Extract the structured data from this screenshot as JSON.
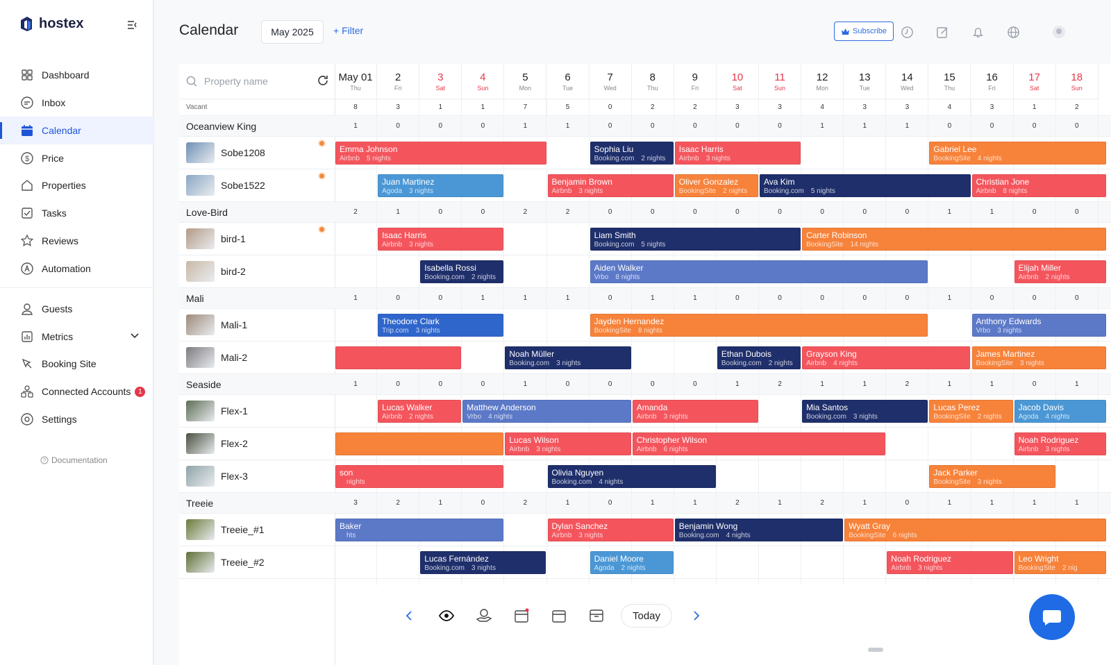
{
  "brand": {
    "name": "hostex"
  },
  "nav": {
    "items": [
      {
        "label": "Dashboard",
        "icon": "dashboard-icon"
      },
      {
        "label": "Inbox",
        "icon": "inbox-icon"
      },
      {
        "label": "Calendar",
        "icon": "calendar-icon",
        "active": true
      },
      {
        "label": "Price",
        "icon": "price-icon"
      },
      {
        "label": "Properties",
        "icon": "properties-icon"
      },
      {
        "label": "Tasks",
        "icon": "tasks-icon"
      },
      {
        "label": "Reviews",
        "icon": "reviews-icon"
      },
      {
        "label": "Automation",
        "icon": "automation-icon"
      },
      {
        "label": "Guests",
        "icon": "guests-icon"
      },
      {
        "label": "Metrics",
        "icon": "metrics-icon"
      },
      {
        "label": "Booking Site",
        "icon": "booking-site-icon"
      },
      {
        "label": "Connected Accounts",
        "icon": "connected-accounts-icon",
        "badge": "1"
      },
      {
        "label": "Settings",
        "icon": "settings-icon"
      }
    ],
    "documentation": "Documentation"
  },
  "header": {
    "title": "Calendar",
    "month": "May 2025",
    "filter": "+ Filter",
    "subscribe": "Subscribe"
  },
  "search": {
    "placeholder": "Property name"
  },
  "days": [
    {
      "num": "May 01",
      "dow": "Thu"
    },
    {
      "num": "2",
      "dow": "Fri"
    },
    {
      "num": "3",
      "dow": "Sat",
      "weekend": true
    },
    {
      "num": "4",
      "dow": "Sun",
      "weekend": true
    },
    {
      "num": "5",
      "dow": "Mon"
    },
    {
      "num": "6",
      "dow": "Tue"
    },
    {
      "num": "7",
      "dow": "Wed"
    },
    {
      "num": "8",
      "dow": "Thu"
    },
    {
      "num": "9",
      "dow": "Fri"
    },
    {
      "num": "10",
      "dow": "Sat",
      "weekend": true
    },
    {
      "num": "11",
      "dow": "Sun",
      "weekend": true
    },
    {
      "num": "12",
      "dow": "Mon"
    },
    {
      "num": "13",
      "dow": "Tue"
    },
    {
      "num": "14",
      "dow": "Wed"
    },
    {
      "num": "15",
      "dow": "Thu"
    },
    {
      "num": "16",
      "dow": "Fri"
    },
    {
      "num": "17",
      "dow": "Sat",
      "weekend": true
    },
    {
      "num": "18",
      "dow": "Sun",
      "weekend": true
    }
  ],
  "vacant": {
    "label": "Vacant",
    "values": [
      "8",
      "3",
      "1",
      "1",
      "7",
      "5",
      "0",
      "2",
      "2",
      "3",
      "3",
      "4",
      "3",
      "3",
      "4",
      "3",
      "1",
      "2"
    ]
  },
  "groups": [
    {
      "name": "Oceanview King",
      "counts": [
        "1",
        "0",
        "0",
        "0",
        "1",
        "1",
        "0",
        "0",
        "0",
        "0",
        "0",
        "1",
        "1",
        "1",
        "0",
        "0",
        "0",
        "0"
      ],
      "properties": [
        {
          "name": "Sobe1208",
          "dot": true,
          "thumb": "#6f8fb5",
          "bookings": [
            {
              "guest": "Emma Johnson",
              "channel": "Airbnb",
              "nights": "5 nights",
              "start": 0,
              "span": 5,
              "color": "red"
            },
            {
              "guest": "Sophia Liu",
              "channel": "Booking.com",
              "nights": "2 nights",
              "start": 6,
              "span": 2,
              "color": "navy"
            },
            {
              "guest": "Isaac Harris",
              "channel": "Airbnb",
              "nights": "3 nights",
              "start": 8,
              "span": 3,
              "color": "red"
            },
            {
              "guest": "Gabriel Lee",
              "channel": "BookingSite",
              "nights": "4 nights",
              "start": 14,
              "span": 4.2,
              "color": "orange"
            }
          ]
        },
        {
          "name": "Sobe1522",
          "dot": true,
          "thumb": "#8aa7c4",
          "bookings": [
            {
              "guest": "Juan Martinez",
              "channel": "Agoda",
              "nights": "3 nights",
              "start": 1,
              "span": 3,
              "color": "blue"
            },
            {
              "guest": "Benjamin Brown",
              "channel": "Airbnb",
              "nights": "3 nights",
              "start": 5,
              "span": 3,
              "color": "red"
            },
            {
              "guest": "Oliver Gonzalez",
              "channel": "BookingSite",
              "nights": "2 nights",
              "start": 8,
              "span": 2,
              "color": "orange"
            },
            {
              "guest": "Ava Kim",
              "channel": "Booking.com",
              "nights": "5 nights",
              "start": 10,
              "span": 5,
              "color": "navy"
            },
            {
              "guest": "Christian Jone",
              "channel": "Airbnb",
              "nights": "8 nights",
              "start": 15,
              "span": 3.2,
              "color": "red"
            }
          ]
        }
      ]
    },
    {
      "name": "Love-Bird",
      "counts": [
        "2",
        "1",
        "0",
        "0",
        "2",
        "2",
        "0",
        "0",
        "0",
        "0",
        "0",
        "0",
        "0",
        "0",
        "1",
        "1",
        "0",
        "0"
      ],
      "properties": [
        {
          "name": "bird-1",
          "dot": true,
          "thumb": "#b39a86",
          "bookings": [
            {
              "guest": "Isaac Harris",
              "channel": "Airbnb",
              "nights": "3 nights",
              "start": 1,
              "span": 3,
              "color": "red"
            },
            {
              "guest": "Liam Smith",
              "channel": "Booking.com",
              "nights": "5 nights",
              "start": 6,
              "span": 5,
              "color": "navy"
            },
            {
              "guest": "Carter Robinson",
              "channel": "BookingSite",
              "nights": "14 nights",
              "start": 11,
              "span": 7.2,
              "color": "orange"
            }
          ]
        },
        {
          "name": "bird-2",
          "dot": false,
          "thumb": "#c9b8a6",
          "bookings": [
            {
              "guest": "Isabella Rossi",
              "channel": "Booking.com",
              "nights": "2 nights",
              "start": 2,
              "span": 2,
              "color": "navy"
            },
            {
              "guest": "Aiden Walker",
              "channel": "Vrbo",
              "nights": "8 nights",
              "start": 6,
              "span": 8,
              "color": "indigo"
            },
            {
              "guest": "Elijah Miller",
              "channel": "Airbnb",
              "nights": "2 nights",
              "start": 16,
              "span": 2.2,
              "color": "red"
            }
          ]
        }
      ]
    },
    {
      "name": "Mali",
      "counts": [
        "1",
        "0",
        "0",
        "1",
        "1",
        "1",
        "0",
        "1",
        "1",
        "0",
        "0",
        "0",
        "0",
        "0",
        "1",
        "0",
        "0",
        "0"
      ],
      "properties": [
        {
          "name": "Mali-1",
          "dot": false,
          "thumb": "#9d8a7a",
          "bookings": [
            {
              "guest": "Theodore Clark",
              "channel": "Trip.com",
              "nights": "3 nights",
              "start": 1,
              "span": 3,
              "color": "rblue"
            },
            {
              "guest": "Jayden Hernandez",
              "channel": "BookingSite",
              "nights": "8 nights",
              "start": 6,
              "span": 8,
              "color": "orange"
            },
            {
              "guest": "Anthony Edwards",
              "channel": "Vrbo",
              "nights": "3 nights",
              "start": 15,
              "span": 3.2,
              "color": "indigo"
            }
          ]
        },
        {
          "name": "Mali-2",
          "dot": false,
          "thumb": "#7d7b80",
          "bookings": [
            {
              "guest": "",
              "channel": "",
              "nights": "",
              "start": 0,
              "span": 3,
              "color": "red"
            },
            {
              "guest": "Noah Müller",
              "channel": "Booking.com",
              "nights": "3 nights",
              "start": 4,
              "span": 3,
              "color": "navy"
            },
            {
              "guest": "Ethan Dubois",
              "channel": "Booking.com",
              "nights": "2 nights",
              "start": 9,
              "span": 2,
              "color": "navy"
            },
            {
              "guest": "Grayson King",
              "channel": "Airbnb",
              "nights": "4 nights",
              "start": 11,
              "span": 4,
              "color": "red"
            },
            {
              "guest": "James Martinez",
              "channel": "BookingSite",
              "nights": "3 nights",
              "start": 15,
              "span": 3.2,
              "color": "orange"
            }
          ]
        }
      ]
    },
    {
      "name": "Seaside",
      "counts": [
        "1",
        "0",
        "0",
        "0",
        "1",
        "0",
        "0",
        "0",
        "0",
        "1",
        "2",
        "1",
        "1",
        "2",
        "1",
        "1",
        "0",
        "1"
      ],
      "properties": [
        {
          "name": "Flex-1",
          "dot": false,
          "thumb": "#5d6d55",
          "bookings": [
            {
              "guest": "Lucas Walker",
              "channel": "Airbnb",
              "nights": "2 nights",
              "start": 1,
              "span": 2,
              "color": "red"
            },
            {
              "guest": "Matthew Anderson",
              "channel": "Vrbo",
              "nights": "4 nights",
              "start": 3,
              "span": 4,
              "color": "indigo"
            },
            {
              "guest": "Amanda",
              "channel": "Airbnb",
              "nights": "3 nights",
              "start": 7,
              "span": 3,
              "color": "red"
            },
            {
              "guest": "Mia Santos",
              "channel": "Booking.com",
              "nights": "3 nights",
              "start": 11,
              "span": 3,
              "color": "navy"
            },
            {
              "guest": "Lucas Perez",
              "channel": "BookingSite",
              "nights": "2 nights",
              "start": 14,
              "span": 2,
              "color": "orange"
            },
            {
              "guest": "Jacob Davis",
              "channel": "Agoda",
              "nights": "4 nights",
              "start": 16,
              "span": 2.2,
              "color": "blue"
            }
          ]
        },
        {
          "name": "Flex-2",
          "dot": false,
          "thumb": "#4a5040",
          "bookings": [
            {
              "guest": "",
              "channel": "",
              "nights": "",
              "start": 0,
              "span": 4,
              "color": "orange"
            },
            {
              "guest": "Lucas Wilson",
              "channel": "Airbnb",
              "nights": "3 nights",
              "start": 4,
              "span": 3,
              "color": "red"
            },
            {
              "guest": "Christopher Wilson",
              "channel": "Airbnb",
              "nights": "6 nights",
              "start": 7,
              "span": 6,
              "color": "red"
            },
            {
              "guest": "Noah Rodriguez",
              "channel": "Airbnb",
              "nights": "3 nights",
              "start": 16,
              "span": 2.2,
              "color": "red"
            }
          ]
        },
        {
          "name": "Flex-3",
          "dot": false,
          "thumb": "#8fa3a8",
          "bookings": [
            {
              "guest": "son",
              "channel": "",
              "nights": "nights",
              "start": 0,
              "span": 4,
              "color": "red"
            },
            {
              "guest": "Olivia Nguyen",
              "channel": "Booking.com",
              "nights": "4 nights",
              "start": 5,
              "span": 4,
              "color": "navy"
            },
            {
              "guest": "Jack Parker",
              "channel": "BookingSite",
              "nights": "3 nights",
              "start": 14,
              "span": 3,
              "color": "orange"
            }
          ]
        }
      ]
    },
    {
      "name": "Treeie",
      "counts": [
        "3",
        "2",
        "1",
        "0",
        "2",
        "1",
        "0",
        "1",
        "1",
        "2",
        "1",
        "2",
        "1",
        "0",
        "1",
        "1",
        "1",
        "1"
      ],
      "properties": [
        {
          "name": "Treeie_#1",
          "dot": false,
          "thumb": "#6b7b3a",
          "bookings": [
            {
              "guest": "Baker",
              "channel": "",
              "nights": "hts",
              "start": 0,
              "span": 4,
              "color": "indigo"
            },
            {
              "guest": "Dylan Sanchez",
              "channel": "Airbnb",
              "nights": "3 nights",
              "start": 5,
              "span": 3,
              "color": "red"
            },
            {
              "guest": "Benjamin Wong",
              "channel": "Booking.com",
              "nights": "4 nights",
              "start": 8,
              "span": 4,
              "color": "navy"
            },
            {
              "guest": "Wyatt Gray",
              "channel": "BookingSite",
              "nights": "6 nights",
              "start": 12,
              "span": 6.2,
              "color": "orange"
            }
          ]
        },
        {
          "name": "Treeie_#2",
          "dot": false,
          "thumb": "#5f7035",
          "bookings": [
            {
              "guest": "Lucas Fernández",
              "channel": "Booking.com",
              "nights": "3 nights",
              "start": 2,
              "span": 3,
              "color": "navy"
            },
            {
              "guest": "Daniel Moore",
              "channel": "Agoda",
              "nights": "2 nights",
              "start": 6,
              "span": 2,
              "color": "blue"
            },
            {
              "guest": "Noah Rodriguez",
              "channel": "Airbnb",
              "nights": "3 nights",
              "start": 13,
              "span": 3,
              "color": "red"
            },
            {
              "guest": "Leo Wright",
              "channel": "BookingSite",
              "nights": "2 nig",
              "start": 16,
              "span": 2.2,
              "color": "orange"
            }
          ]
        }
      ]
    }
  ],
  "toolbar": {
    "today": "Today"
  }
}
